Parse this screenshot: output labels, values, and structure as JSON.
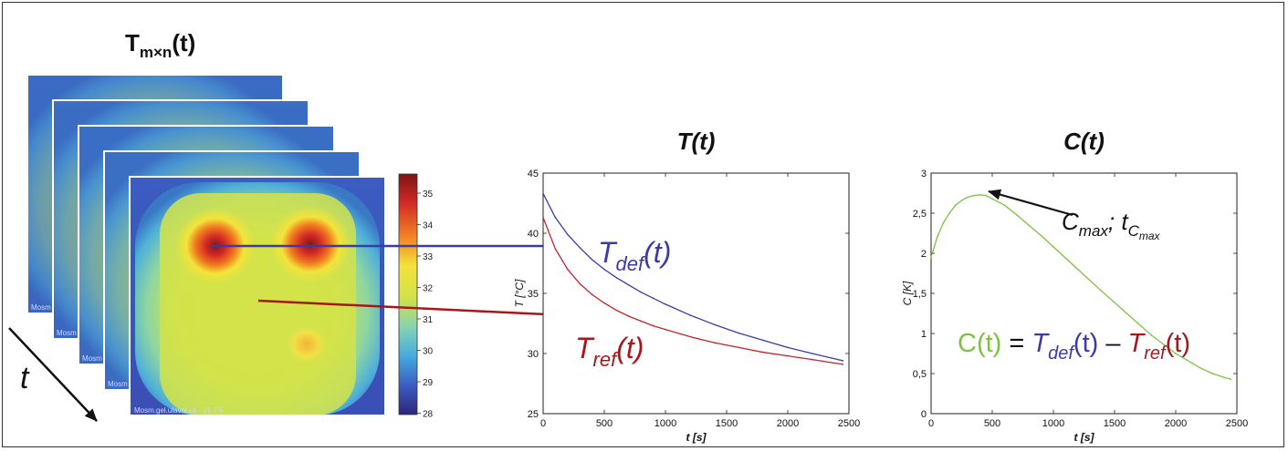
{
  "stack": {
    "title_main": "T",
    "title_sub": "m×n",
    "title_tail": "(t)",
    "time_label": "t",
    "watermark_full": "Mosm.gel.ulaval.ca - v1.7.5",
    "watermark_short": "Mosm",
    "colorbar": {
      "ticks": [
        "35",
        "34",
        "33",
        "32",
        "31",
        "30",
        "29",
        "28"
      ]
    }
  },
  "chart_data": [
    {
      "type": "line",
      "title": "T(t)",
      "xlabel": "t  [s]",
      "ylabel": "T  [°C]",
      "xlim": [
        0,
        2500
      ],
      "ylim": [
        25,
        45
      ],
      "xticks": [
        "0",
        "500",
        "1000",
        "1500",
        "2000",
        "2500"
      ],
      "yticks": [
        "25",
        "30",
        "35",
        "40",
        "45"
      ],
      "grid": false,
      "series": [
        {
          "name": "T_def(t)",
          "color": "#3b3ba8",
          "x": [
            0,
            100,
            200,
            300,
            400,
            500,
            600,
            700,
            800,
            900,
            1000,
            1200,
            1400,
            1600,
            1800,
            2000,
            2200,
            2450
          ],
          "y": [
            43.3,
            41.3,
            39.9,
            38.8,
            37.8,
            37.0,
            36.3,
            35.7,
            35.1,
            34.6,
            34.1,
            33.2,
            32.4,
            31.7,
            31.1,
            30.5,
            30.0,
            29.4
          ]
        },
        {
          "name": "T_ref(t)",
          "color": "#c0252a",
          "x": [
            0,
            100,
            200,
            300,
            400,
            500,
            600,
            700,
            800,
            900,
            1000,
            1200,
            1400,
            1600,
            1800,
            2000,
            2200,
            2450
          ],
          "y": [
            41.3,
            38.7,
            37.0,
            35.8,
            34.9,
            34.2,
            33.6,
            33.1,
            32.7,
            32.3,
            32.0,
            31.4,
            30.9,
            30.5,
            30.1,
            29.8,
            29.5,
            29.1
          ]
        }
      ],
      "annotations": {
        "def": {
          "base": "T",
          "sub": "def",
          "tail": "(t)"
        },
        "ref": {
          "base": "T",
          "sub": "ref",
          "tail": "(t)"
        }
      }
    },
    {
      "type": "line",
      "title": "C(t)",
      "xlabel": "t  [s]",
      "ylabel": "C  [K]",
      "xlim": [
        0,
        2500
      ],
      "ylim": [
        0,
        3
      ],
      "xticks": [
        "0",
        "500",
        "1000",
        "1500",
        "2000",
        "2500"
      ],
      "yticks": [
        "0",
        "0,5",
        "1",
        "1,5",
        "2",
        "2,5",
        "3"
      ],
      "grid": false,
      "series": [
        {
          "name": "C(t)",
          "color": "#7dc142",
          "x": [
            0,
            50,
            100,
            150,
            200,
            250,
            300,
            350,
            400,
            450,
            500,
            600,
            700,
            800,
            900,
            1000,
            1200,
            1400,
            1600,
            1800,
            2000,
            2200,
            2300,
            2400,
            2450
          ],
          "y": [
            1.95,
            2.2,
            2.38,
            2.5,
            2.6,
            2.66,
            2.7,
            2.72,
            2.73,
            2.72,
            2.68,
            2.6,
            2.48,
            2.35,
            2.22,
            2.08,
            1.8,
            1.52,
            1.25,
            0.98,
            0.75,
            0.57,
            0.5,
            0.45,
            0.43
          ]
        }
      ],
      "annotations": {
        "cmax": {
          "c": "C",
          "csub": "max",
          "sep": "; ",
          "t": "t",
          "tsub": "C",
          "tsubsub": "max"
        },
        "formula": {
          "lhs": "C(t)",
          "eq": " = ",
          "d_base": "T",
          "d_sub": "def",
          "d_tail": "(t)",
          "minus": " – ",
          "r_base": "T",
          "r_sub": "ref",
          "r_tail": "(t)"
        }
      }
    }
  ]
}
